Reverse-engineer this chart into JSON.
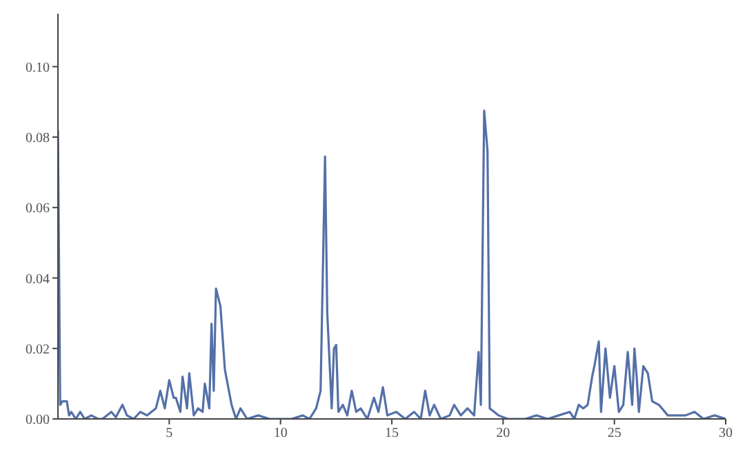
{
  "chart_data": {
    "type": "line",
    "xlim": [
      0,
      30
    ],
    "ylim": [
      0,
      0.115
    ],
    "xticks": [
      5,
      10,
      15,
      20,
      25,
      30
    ],
    "yticks": [
      {
        "value": 0,
        "label": "0.00"
      },
      {
        "value": 0.02,
        "label": "0.02"
      },
      {
        "value": 0.04,
        "label": "0.04"
      },
      {
        "value": 0.06,
        "label": "0.06"
      },
      {
        "value": 0.08,
        "label": "0.08"
      },
      {
        "value": 0.1,
        "label": "0.10"
      }
    ],
    "grid": false,
    "marker": "none",
    "line_style": "solid",
    "series": [
      {
        "color": "#5470a8",
        "x": [
          0,
          0.1,
          0.2,
          0.4,
          0.5,
          0.6,
          0.8,
          1,
          1.2,
          1.5,
          1.8,
          2,
          2.4,
          2.6,
          2.9,
          3.1,
          3.4,
          3.7,
          4,
          4.2,
          4.4,
          4.6,
          4.8,
          5,
          5.2,
          5.3,
          5.5,
          5.6,
          5.8,
          5.9,
          6.1,
          6.3,
          6.5,
          6.6,
          6.8,
          6.9,
          7,
          7.1,
          7.3,
          7.5,
          7.8,
          8,
          8.2,
          8.5,
          9,
          9.5,
          10,
          10.5,
          11,
          11.3,
          11.6,
          11.8,
          12,
          12.1,
          12.3,
          12.4,
          12.5,
          12.6,
          12.8,
          13,
          13.2,
          13.4,
          13.6,
          13.9,
          14.2,
          14.4,
          14.6,
          14.8,
          15.2,
          15.6,
          16,
          16.3,
          16.5,
          16.7,
          16.9,
          17.2,
          17.6,
          17.8,
          18.1,
          18.4,
          18.7,
          18.9,
          19,
          19.15,
          19.3,
          19.4,
          19.6,
          19.8,
          20.2,
          21,
          21.5,
          22,
          22.5,
          23,
          23.2,
          23.4,
          23.6,
          23.8,
          24,
          24.1,
          24.3,
          24.4,
          24.6,
          24.8,
          25,
          25.2,
          25.4,
          25.6,
          25.8,
          25.9,
          26,
          26.1,
          26.3,
          26.5,
          26.7,
          27,
          27.4,
          27.8,
          28.2,
          28.6,
          29,
          29.5,
          30
        ],
        "values": [
          0.082,
          0.004,
          0.005,
          0.005,
          0.001,
          0.002,
          0,
          0.002,
          0,
          0.001,
          0,
          0,
          0.002,
          0.0005,
          0.004,
          0.001,
          0,
          0.002,
          0.001,
          0.002,
          0.003,
          0.008,
          0.003,
          0.011,
          0.006,
          0.006,
          0.002,
          0.012,
          0.003,
          0.013,
          0.001,
          0.003,
          0.002,
          0.01,
          0.003,
          0.027,
          0.008,
          0.037,
          0.032,
          0.014,
          0.004,
          0,
          0.003,
          0,
          0.001,
          0,
          0,
          0,
          0.001,
          0,
          0.003,
          0.008,
          0.0745,
          0.03,
          0.003,
          0.02,
          0.021,
          0.002,
          0.004,
          0.001,
          0.008,
          0.002,
          0.003,
          0,
          0.006,
          0.002,
          0.009,
          0.001,
          0.002,
          0,
          0.002,
          0,
          0.008,
          0.001,
          0.004,
          0,
          0.001,
          0.004,
          0.001,
          0.003,
          0.001,
          0.019,
          0.004,
          0.0875,
          0.076,
          0.003,
          0.002,
          0.001,
          0,
          0,
          0.001,
          0,
          0.001,
          0.002,
          0,
          0.004,
          0.003,
          0.004,
          0.012,
          0.015,
          0.022,
          0.002,
          0.02,
          0.006,
          0.015,
          0.002,
          0.004,
          0.019,
          0.004,
          0.02,
          0.012,
          0.002,
          0.015,
          0.013,
          0.005,
          0.004,
          0.001,
          0.001,
          0.001,
          0.002,
          0,
          0.001,
          0
        ]
      }
    ]
  }
}
